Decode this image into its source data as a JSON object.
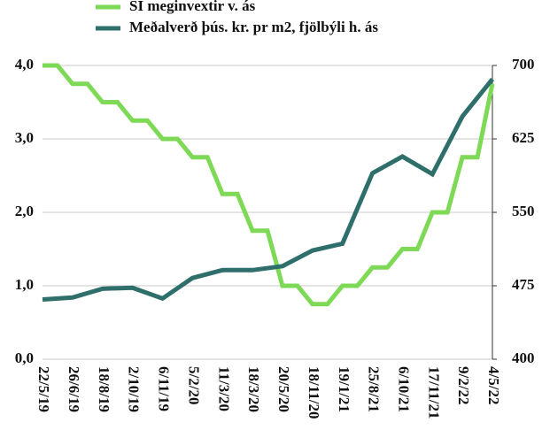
{
  "chart_data": {
    "type": "line",
    "categories": [
      "22/5/19",
      "26/6/19",
      "18/8/19",
      "2/10/19",
      "6/11/19",
      "5/2/20",
      "11/3/20",
      "18/3/20",
      "20/5/20",
      "18/11/20",
      "19/1/21",
      "25/8/21",
      "6/10/21",
      "17/11/21",
      "9/2/22",
      "4/5/22"
    ],
    "series": [
      {
        "name": "SÍ meginvextir v. ás",
        "color": "#7ed957",
        "step": true,
        "values": [
          4.0,
          3.75,
          3.5,
          3.25,
          3.0,
          2.75,
          2.25,
          1.75,
          1.0,
          0.75,
          1.0,
          1.25,
          1.5,
          2.0,
          2.75,
          3.75
        ]
      },
      {
        "name": "Meðalverð þús. kr. pr m2, fjölbýli h. ás",
        "color": "#2f6f6b",
        "axis": "y2",
        "values": [
          461,
          463,
          472,
          473,
          462,
          483,
          491,
          491,
          495,
          511,
          518,
          590,
          607,
          589,
          648,
          686
        ]
      }
    ],
    "ylim": [
      0,
      4
    ],
    "yticks": [
      {
        "value": 0,
        "label": "0,0"
      },
      {
        "value": 1,
        "label": "1,0"
      },
      {
        "value": 2,
        "label": "2,0"
      },
      {
        "value": 3,
        "label": "3,0"
      },
      {
        "value": 4,
        "label": "4,0"
      }
    ],
    "y2lim": [
      400,
      700
    ],
    "y2ticks": [
      400,
      475,
      550,
      625,
      700
    ],
    "grid": true
  }
}
